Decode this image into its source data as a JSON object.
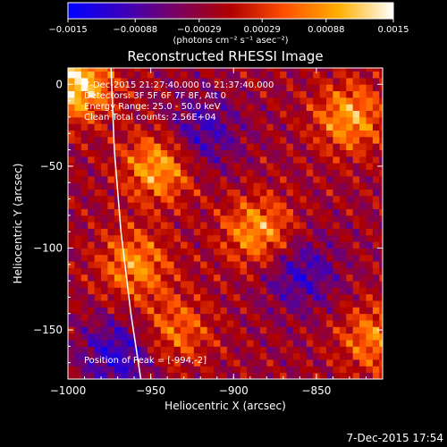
{
  "chart_data": {
    "type": "heatmap",
    "title": "Reconstructed RHESSI Image",
    "xlabel": "Heliocentric X (arcsec)",
    "ylabel": "Heliocentric Y (arcsec)",
    "xlim": [
      -1000,
      -810
    ],
    "ylim": [
      -180,
      10
    ],
    "x_ticks": [
      -1000,
      -950,
      -900,
      -850
    ],
    "x_tick_labels": [
      "−1000",
      "−950",
      "−900",
      "−850"
    ],
    "y_ticks": [
      0,
      -50,
      -100,
      -150
    ],
    "y_tick_labels": [
      "0",
      "−50",
      "−100",
      "−150"
    ],
    "colorbar": {
      "range": [
        -0.0015,
        0.0015
      ],
      "tick_values": [
        -0.0015,
        -0.00088,
        -0.00029,
        0.00029,
        0.00088,
        0.0015
      ],
      "tick_labels": [
        "−0.0015",
        "−0.00088",
        "−0.00029",
        "0.00029",
        "0.00088",
        "0.0015"
      ],
      "unit_label": "(photons cm⁻² s⁻¹ asec⁻²)",
      "colors": [
        "#0000ff",
        "#3a00c0",
        "#7a0060",
        "#b00000",
        "#ff5000",
        "#ffb000",
        "#ffffff"
      ]
    },
    "annotations": [
      "7-Dec-2015 21:27:40.000 to 21:37:40.000",
      "Detectors: 3F 5F 6F 7F 8F, Att 0",
      "Energy Range: 25.0 - 50.0 keV",
      "Clean     Total counts: 2.56E+04"
    ],
    "peak_label": "Position of Peak = [-994,-2]",
    "peak": [
      -994,
      -2
    ],
    "hot_spots": [
      {
        "x": -995,
        "y": 0,
        "value": 0.0015
      },
      {
        "x": -945,
        "y": -50,
        "value": 0.0012
      },
      {
        "x": -960,
        "y": -110,
        "value": 0.001
      },
      {
        "x": -885,
        "y": -90,
        "value": 0.0011
      },
      {
        "x": -830,
        "y": -20,
        "value": 0.0011
      },
      {
        "x": -815,
        "y": -155,
        "value": 0.0009
      },
      {
        "x": -935,
        "y": -150,
        "value": 0.0008
      }
    ],
    "cold_spots": [
      {
        "x": -920,
        "y": -30,
        "value": -0.0008
      },
      {
        "x": -970,
        "y": -165,
        "value": -0.0009
      },
      {
        "x": -860,
        "y": -115,
        "value": -0.0008
      }
    ],
    "limb_curve": [
      [
        -974,
        10
      ],
      [
        -972,
        -40
      ],
      [
        -968,
        -90
      ],
      [
        -962,
        -140
      ],
      [
        -956,
        -180
      ]
    ],
    "timestamp": "7-Dec-2015 17:54"
  }
}
